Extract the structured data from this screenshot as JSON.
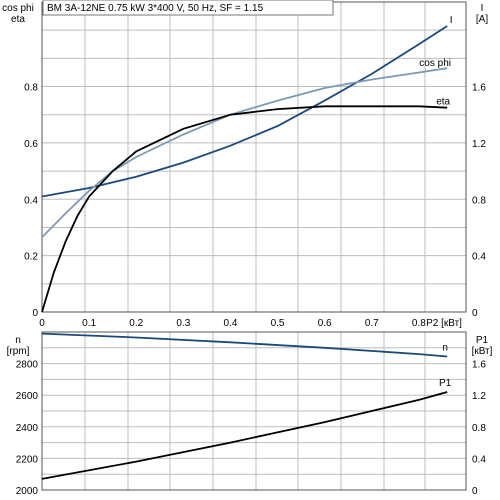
{
  "chart_data": [
    {
      "type": "line",
      "title": "BM 3A-12NE   0.75 kW   3*400 V, 50 Hz, SF = 1.15",
      "xlabel": "P2 [кВт]",
      "x_ticks": [
        "0",
        "0.1",
        "0.2",
        "0.3",
        "0.4",
        "0.5",
        "0.6",
        "0.7",
        "0.8"
      ],
      "xlim": [
        0,
        0.9
      ],
      "y_left_label_top": "cos phi",
      "y_left_label_bottom": "eta",
      "ylim_left": [
        0,
        1.1
      ],
      "y_left_ticks": [
        "0",
        "0.2",
        "0.4",
        "0.6",
        "0.8"
      ],
      "y_right_label_top": "I",
      "y_right_label_bottom": "[A]",
      "ylim_right": [
        0,
        2.2
      ],
      "y_right_ticks": [
        "0",
        "0.4",
        "0.8",
        "1.2",
        "1.6"
      ],
      "grid": true,
      "series": [
        {
          "name": "I",
          "axis": "right",
          "color": "#1a4a7a",
          "x": [
            0,
            0.1,
            0.2,
            0.3,
            0.4,
            0.5,
            0.6,
            0.7,
            0.8,
            0.86
          ],
          "y": [
            0.82,
            0.88,
            0.96,
            1.06,
            1.18,
            1.32,
            1.5,
            1.69,
            1.9,
            2.03
          ]
        },
        {
          "name": "cos phi",
          "axis": "left",
          "color": "#7a9ab5",
          "x": [
            0,
            0.05,
            0.1,
            0.15,
            0.2,
            0.3,
            0.4,
            0.5,
            0.6,
            0.7,
            0.8,
            0.86
          ],
          "y": [
            0.265,
            0.35,
            0.43,
            0.5,
            0.55,
            0.63,
            0.7,
            0.75,
            0.795,
            0.825,
            0.85,
            0.865
          ]
        },
        {
          "name": "eta",
          "axis": "left",
          "color": "#000000",
          "x": [
            0,
            0.025,
            0.05,
            0.075,
            0.1,
            0.15,
            0.2,
            0.3,
            0.4,
            0.5,
            0.6,
            0.7,
            0.8,
            0.86
          ],
          "y": [
            0,
            0.14,
            0.25,
            0.34,
            0.41,
            0.5,
            0.57,
            0.65,
            0.7,
            0.72,
            0.73,
            0.73,
            0.73,
            0.725
          ]
        }
      ]
    },
    {
      "type": "line",
      "y_left_label_top": "n",
      "y_left_label_bottom": "[rpm]",
      "ylim_left": [
        2000,
        3000
      ],
      "y_left_ticks": [
        "2000",
        "2200",
        "2400",
        "2600",
        "2800"
      ],
      "y_right_label_top": "P1",
      "y_right_label_bottom": "[кВт]",
      "ylim_right": [
        0,
        2
      ],
      "y_right_ticks": [
        "0",
        "0.4",
        "0.8",
        "1.2",
        "1.6"
      ],
      "xlim": [
        0,
        0.9
      ],
      "grid": true,
      "series": [
        {
          "name": "n",
          "axis": "left",
          "color": "#1a4a7a",
          "x": [
            0,
            0.2,
            0.4,
            0.6,
            0.8,
            0.86
          ],
          "y": [
            2990,
            2965,
            2935,
            2900,
            2860,
            2845
          ]
        },
        {
          "name": "P1",
          "axis": "right",
          "color": "#000000",
          "x": [
            0,
            0.2,
            0.4,
            0.6,
            0.8,
            0.86
          ],
          "y": [
            0.14,
            0.36,
            0.6,
            0.86,
            1.14,
            1.24
          ]
        }
      ]
    }
  ]
}
